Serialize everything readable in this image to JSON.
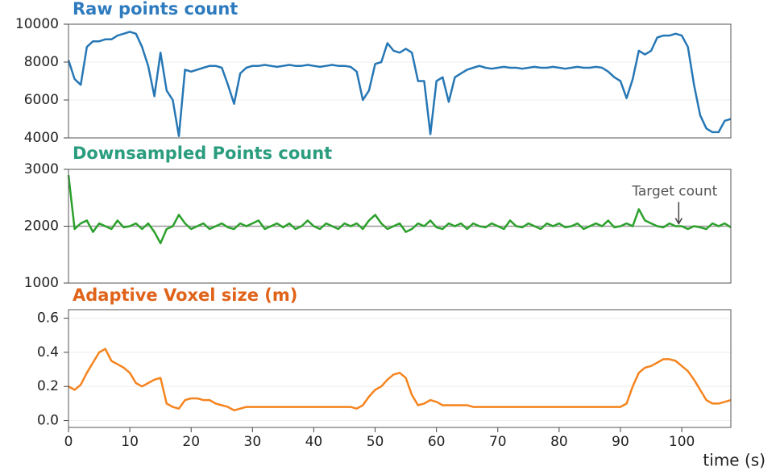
{
  "chart_data": [
    {
      "type": "line",
      "title": "Raw points count",
      "color": "#2677b5",
      "title_color": "#2e7bbf",
      "x": [
        0,
        1,
        2,
        3,
        4,
        5,
        6,
        7,
        8,
        9,
        10,
        11,
        12,
        13,
        14,
        15,
        16,
        17,
        18,
        19,
        20,
        21,
        22,
        23,
        24,
        25,
        26,
        27,
        28,
        29,
        30,
        31,
        32,
        33,
        34,
        35,
        36,
        37,
        38,
        39,
        40,
        41,
        42,
        43,
        44,
        45,
        46,
        47,
        48,
        49,
        50,
        51,
        52,
        53,
        54,
        55,
        56,
        57,
        58,
        59,
        60,
        61,
        62,
        63,
        64,
        65,
        66,
        67,
        68,
        69,
        70,
        71,
        72,
        73,
        74,
        75,
        76,
        77,
        78,
        79,
        80,
        81,
        82,
        83,
        84,
        85,
        86,
        87,
        88,
        89,
        90,
        91,
        92,
        93,
        94,
        95,
        96,
        97,
        98,
        99,
        100,
        101,
        102,
        103,
        104,
        105,
        106,
        107,
        108
      ],
      "values": [
        8100,
        7100,
        6800,
        8800,
        9100,
        9100,
        9200,
        9200,
        9400,
        9500,
        9600,
        9500,
        8800,
        7800,
        6200,
        8500,
        6500,
        6000,
        4100,
        7600,
        7500,
        7600,
        7700,
        7800,
        7800,
        7700,
        6800,
        5800,
        7400,
        7700,
        7800,
        7800,
        7850,
        7800,
        7750,
        7800,
        7850,
        7800,
        7800,
        7850,
        7800,
        7750,
        7800,
        7850,
        7800,
        7800,
        7750,
        7500,
        6000,
        6500,
        7900,
        8000,
        9000,
        8600,
        8500,
        8700,
        8500,
        7000,
        7000,
        4200,
        7000,
        7200,
        5900,
        7200,
        7400,
        7600,
        7700,
        7800,
        7700,
        7650,
        7700,
        7750,
        7700,
        7700,
        7650,
        7700,
        7750,
        7700,
        7700,
        7750,
        7700,
        7650,
        7700,
        7750,
        7700,
        7700,
        7750,
        7700,
        7500,
        7200,
        7000,
        6100,
        7100,
        8600,
        8400,
        8600,
        9300,
        9400,
        9400,
        9500,
        9400,
        8800,
        6800,
        5200,
        4500,
        4300,
        4300,
        4900,
        5000
      ],
      "xlim": [
        0,
        108
      ],
      "ylim": [
        4000,
        10000
      ],
      "yticks": [
        4000,
        6000,
        8000,
        10000
      ],
      "grid": true
    },
    {
      "type": "line",
      "title": "Downsampled Points count",
      "color": "#2ca02c",
      "title_color": "#2a9d7f",
      "x": [
        0,
        1,
        2,
        3,
        4,
        5,
        6,
        7,
        8,
        9,
        10,
        11,
        12,
        13,
        14,
        15,
        16,
        17,
        18,
        19,
        20,
        21,
        22,
        23,
        24,
        25,
        26,
        27,
        28,
        29,
        30,
        31,
        32,
        33,
        34,
        35,
        36,
        37,
        38,
        39,
        40,
        41,
        42,
        43,
        44,
        45,
        46,
        47,
        48,
        49,
        50,
        51,
        52,
        53,
        54,
        55,
        56,
        57,
        58,
        59,
        60,
        61,
        62,
        63,
        64,
        65,
        66,
        67,
        68,
        69,
        70,
        71,
        72,
        73,
        74,
        75,
        76,
        77,
        78,
        79,
        80,
        81,
        82,
        83,
        84,
        85,
        86,
        87,
        88,
        89,
        90,
        91,
        92,
        93,
        94,
        95,
        96,
        97,
        98,
        99,
        100,
        101,
        102,
        103,
        104,
        105,
        106,
        107,
        108
      ],
      "values": [
        2900,
        1950,
        2050,
        2100,
        1900,
        2050,
        2000,
        1950,
        2100,
        1980,
        2000,
        2050,
        1950,
        2050,
        1900,
        1700,
        1950,
        2000,
        2200,
        2050,
        1950,
        2000,
        2050,
        1950,
        2000,
        2050,
        1980,
        1950,
        2050,
        2000,
        2050,
        2100,
        1950,
        2000,
        2050,
        1980,
        2050,
        1950,
        2000,
        2100,
        2000,
        1950,
        2050,
        2000,
        1950,
        2050,
        2000,
        2050,
        1950,
        2100,
        2200,
        2050,
        1950,
        2000,
        2050,
        1900,
        1950,
        2050,
        2000,
        2100,
        1980,
        1950,
        2050,
        2000,
        2050,
        1950,
        2050,
        2000,
        1980,
        2050,
        2000,
        1950,
        2100,
        2000,
        1980,
        2050,
        2000,
        1950,
        2050,
        2000,
        2050,
        1980,
        2000,
        2050,
        1950,
        2000,
        2050,
        2000,
        2100,
        1980,
        2000,
        2050,
        2000,
        2300,
        2100,
        2050,
        2000,
        1980,
        2050,
        2000,
        2000,
        1950,
        2000,
        1980,
        1950,
        2050,
        2000,
        2050,
        1980
      ],
      "xlim": [
        0,
        108
      ],
      "ylim": [
        1000,
        3000
      ],
      "yticks": [
        1000,
        2000,
        3000
      ],
      "grid": true,
      "target": 2000,
      "annotations": [
        {
          "text": "Target count",
          "x": 99.5,
          "y": 2000
        }
      ]
    },
    {
      "type": "line",
      "title": "Adaptive Voxel size (m)",
      "color": "#f5841f",
      "title_color": "#e0631a",
      "x": [
        0,
        1,
        2,
        3,
        4,
        5,
        6,
        7,
        8,
        9,
        10,
        11,
        12,
        13,
        14,
        15,
        16,
        17,
        18,
        19,
        20,
        21,
        22,
        23,
        24,
        25,
        26,
        27,
        28,
        29,
        30,
        31,
        32,
        33,
        34,
        35,
        36,
        37,
        38,
        39,
        40,
        41,
        42,
        43,
        44,
        45,
        46,
        47,
        48,
        49,
        50,
        51,
        52,
        53,
        54,
        55,
        56,
        57,
        58,
        59,
        60,
        61,
        62,
        63,
        64,
        65,
        66,
        67,
        68,
        69,
        70,
        71,
        72,
        73,
        74,
        75,
        76,
        77,
        78,
        79,
        80,
        81,
        82,
        83,
        84,
        85,
        86,
        87,
        88,
        89,
        90,
        91,
        92,
        93,
        94,
        95,
        96,
        97,
        98,
        99,
        100,
        101,
        102,
        103,
        104,
        105,
        106,
        107,
        108
      ],
      "values": [
        0.2,
        0.18,
        0.21,
        0.28,
        0.34,
        0.4,
        0.42,
        0.35,
        0.33,
        0.31,
        0.28,
        0.22,
        0.2,
        0.22,
        0.24,
        0.25,
        0.1,
        0.08,
        0.07,
        0.12,
        0.13,
        0.13,
        0.12,
        0.12,
        0.1,
        0.09,
        0.08,
        0.06,
        0.07,
        0.08,
        0.08,
        0.08,
        0.08,
        0.08,
        0.08,
        0.08,
        0.08,
        0.08,
        0.08,
        0.08,
        0.08,
        0.08,
        0.08,
        0.08,
        0.08,
        0.08,
        0.08,
        0.07,
        0.09,
        0.14,
        0.18,
        0.2,
        0.24,
        0.27,
        0.28,
        0.25,
        0.15,
        0.09,
        0.1,
        0.12,
        0.11,
        0.09,
        0.09,
        0.09,
        0.09,
        0.09,
        0.08,
        0.08,
        0.08,
        0.08,
        0.08,
        0.08,
        0.08,
        0.08,
        0.08,
        0.08,
        0.08,
        0.08,
        0.08,
        0.08,
        0.08,
        0.08,
        0.08,
        0.08,
        0.08,
        0.08,
        0.08,
        0.08,
        0.08,
        0.08,
        0.08,
        0.1,
        0.2,
        0.28,
        0.31,
        0.32,
        0.34,
        0.36,
        0.36,
        0.35,
        0.32,
        0.29,
        0.24,
        0.18,
        0.12,
        0.1,
        0.1,
        0.11,
        0.12
      ],
      "xlim": [
        0,
        108
      ],
      "ylim": [
        -0.04,
        0.65
      ],
      "xticks": [
        0,
        10,
        20,
        30,
        40,
        50,
        60,
        70,
        80,
        90,
        100
      ],
      "yticks": [
        {
          "value": 0,
          "label": "0.0"
        },
        0.2,
        0.4,
        0.6
      ],
      "grid": true,
      "xlabel": "time (s)"
    }
  ]
}
